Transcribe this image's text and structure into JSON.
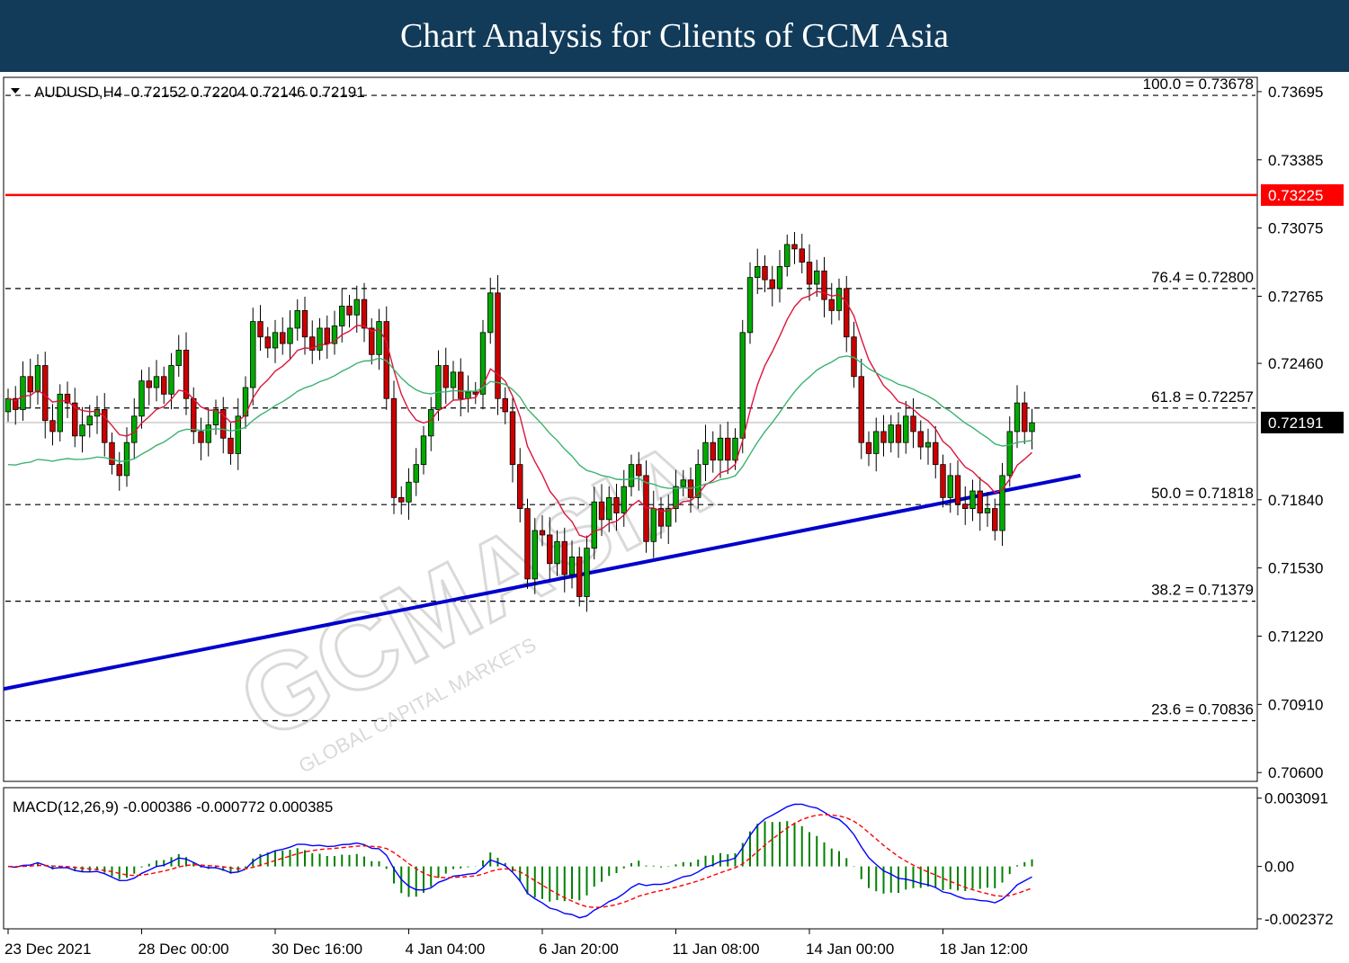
{
  "banner": {
    "title": "Chart Analysis for Clients of GCM Asia"
  },
  "chart_data": {
    "type": "candlestick",
    "symbol_header": "AUDUSD,H4  0.72152 0.72204 0.72146 0.72191",
    "price_axis": {
      "min": 0.7056,
      "max": 0.7376,
      "ticks": [
        "0.73695",
        "0.73385",
        "0.73075",
        "0.72765",
        "0.72460",
        "0.71840",
        "0.71530",
        "0.71220",
        "0.70910",
        "0.70600"
      ]
    },
    "resistance_line": {
      "value": 0.73225,
      "label": "0.73225",
      "color": "#ff0000"
    },
    "current_price": {
      "value": 0.72191,
      "label": "0.72191"
    },
    "fibonacci": [
      {
        "label": "100.0 = 0.73678",
        "value": 0.73678
      },
      {
        "label": "76.4 = 0.72800",
        "value": 0.728
      },
      {
        "label": "61.8 = 0.72257",
        "value": 0.72257
      },
      {
        "label": "50.0 = 0.71818",
        "value": 0.71818
      },
      {
        "label": "38.2 = 0.71379",
        "value": 0.71379
      },
      {
        "label": "23.6 = 0.70836",
        "value": 0.70836
      }
    ],
    "trendline": {
      "start": [
        0,
        0.7098
      ],
      "end": [
        130,
        0.7195
      ],
      "color": "#0000cc"
    },
    "x_labels": [
      {
        "i": 0,
        "label": "23 Dec 2021"
      },
      {
        "i": 18,
        "label": "28 Dec 00:00"
      },
      {
        "i": 36,
        "label": "30 Dec 16:00"
      },
      {
        "i": 54,
        "label": "4 Jan 04:00"
      },
      {
        "i": 72,
        "label": "6 Jan 20:00"
      },
      {
        "i": 90,
        "label": "11 Jan 08:00"
      },
      {
        "i": 108,
        "label": "14 Jan 00:00"
      },
      {
        "i": 126,
        "label": "18 Jan 12:00"
      }
    ],
    "closes": [
      0.723,
      0.7225,
      0.724,
      0.7233,
      0.7245,
      0.722,
      0.7215,
      0.7232,
      0.7228,
      0.7213,
      0.7218,
      0.7222,
      0.7225,
      0.721,
      0.72,
      0.7195,
      0.721,
      0.7222,
      0.7238,
      0.7235,
      0.724,
      0.7232,
      0.7245,
      0.7252,
      0.723,
      0.7215,
      0.721,
      0.7218,
      0.7225,
      0.7212,
      0.7205,
      0.7222,
      0.7235,
      0.7265,
      0.7258,
      0.7253,
      0.726,
      0.7255,
      0.7262,
      0.727,
      0.7258,
      0.7252,
      0.7262,
      0.7255,
      0.7263,
      0.7272,
      0.7268,
      0.7275,
      0.7262,
      0.725,
      0.7265,
      0.723,
      0.7185,
      0.7183,
      0.7192,
      0.72,
      0.7213,
      0.7225,
      0.7245,
      0.7235,
      0.7242,
      0.723,
      0.7233,
      0.7232,
      0.726,
      0.7278,
      0.723,
      0.7224,
      0.72,
      0.718,
      0.7148,
      0.717,
      0.7168,
      0.7155,
      0.7165,
      0.715,
      0.7158,
      0.714,
      0.7162,
      0.7183,
      0.7175,
      0.7185,
      0.7178,
      0.719,
      0.72,
      0.7195,
      0.7165,
      0.718,
      0.7172,
      0.718,
      0.719,
      0.7193,
      0.7185,
      0.72,
      0.721,
      0.7202,
      0.7212,
      0.7202,
      0.7212,
      0.726,
      0.7285,
      0.729,
      0.7284,
      0.728,
      0.729,
      0.73,
      0.7298,
      0.7292,
      0.7282,
      0.7288,
      0.7275,
      0.727,
      0.728,
      0.7258,
      0.724,
      0.721,
      0.7205,
      0.7215,
      0.721,
      0.7218,
      0.721,
      0.7222,
      0.7215,
      0.7208,
      0.721,
      0.72,
      0.7185,
      0.7195,
      0.7182,
      0.718,
      0.7188,
      0.7178,
      0.718,
      0.717,
      0.7195,
      0.7215,
      0.7228,
      0.7215,
      0.7219
    ],
    "ema_fast_label": "red moving average",
    "ema_slow_label": "green moving average",
    "macd": {
      "header": "MACD(12,26,9) -0.000386 -0.000772 0.000385",
      "ticks": [
        "0.003091",
        "0.00",
        "-0.002372"
      ],
      "min": -0.0027,
      "max": 0.0034
    }
  },
  "colors": {
    "bull": "#00aa00",
    "bear": "#cc0000",
    "fast_ma": "#dc143c",
    "slow_ma": "#3cb371",
    "macd_line": "#0000ff",
    "signal_line": "#ff0000",
    "hist": "#008000"
  }
}
